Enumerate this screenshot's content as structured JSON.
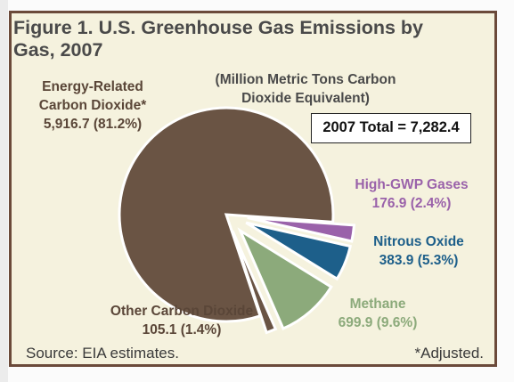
{
  "chart_data": {
    "type": "pie",
    "title": "Figure 1.  U.S. Greenhouse Gas Emissions by Gas, 2007",
    "subtitle": "(Million Metric Tons Carbon Dioxide Equivalent)",
    "total_label": "2007 Total = 7,282.4",
    "total": 7282.4,
    "source": "Source: EIA estimates.",
    "footnote": "*Adjusted.",
    "slices": [
      {
        "name": "Energy-Related Carbon Dioxide*",
        "value": 5916.7,
        "percent": 81.2,
        "color": "#6a5444",
        "label_lines": [
          "Energy-Related",
          "Carbon Dioxide*",
          "5,916.7 (81.2%)"
        ]
      },
      {
        "name": "High-GWP Gases",
        "value": 176.9,
        "percent": 2.4,
        "color": "#9a62aa",
        "label_lines": [
          "High-GWP Gases",
          "176.9 (2.4%)"
        ]
      },
      {
        "name": "Nitrous Oxide",
        "value": 383.9,
        "percent": 5.3,
        "color": "#1d5f8a",
        "label_lines": [
          "Nitrous Oxide",
          "383.9 (5.3%)"
        ]
      },
      {
        "name": "Methane",
        "value": 699.9,
        "percent": 9.6,
        "color": "#8caa7b",
        "label_lines": [
          "Methane",
          "699.9 (9.6%)"
        ]
      },
      {
        "name": "Other Carbon Dioxide",
        "value": 105.1,
        "percent": 1.4,
        "color": "#6a5444",
        "label_lines": [
          "Other Carbon Dioxide",
          "105.1 (1.4%)"
        ]
      }
    ]
  }
}
